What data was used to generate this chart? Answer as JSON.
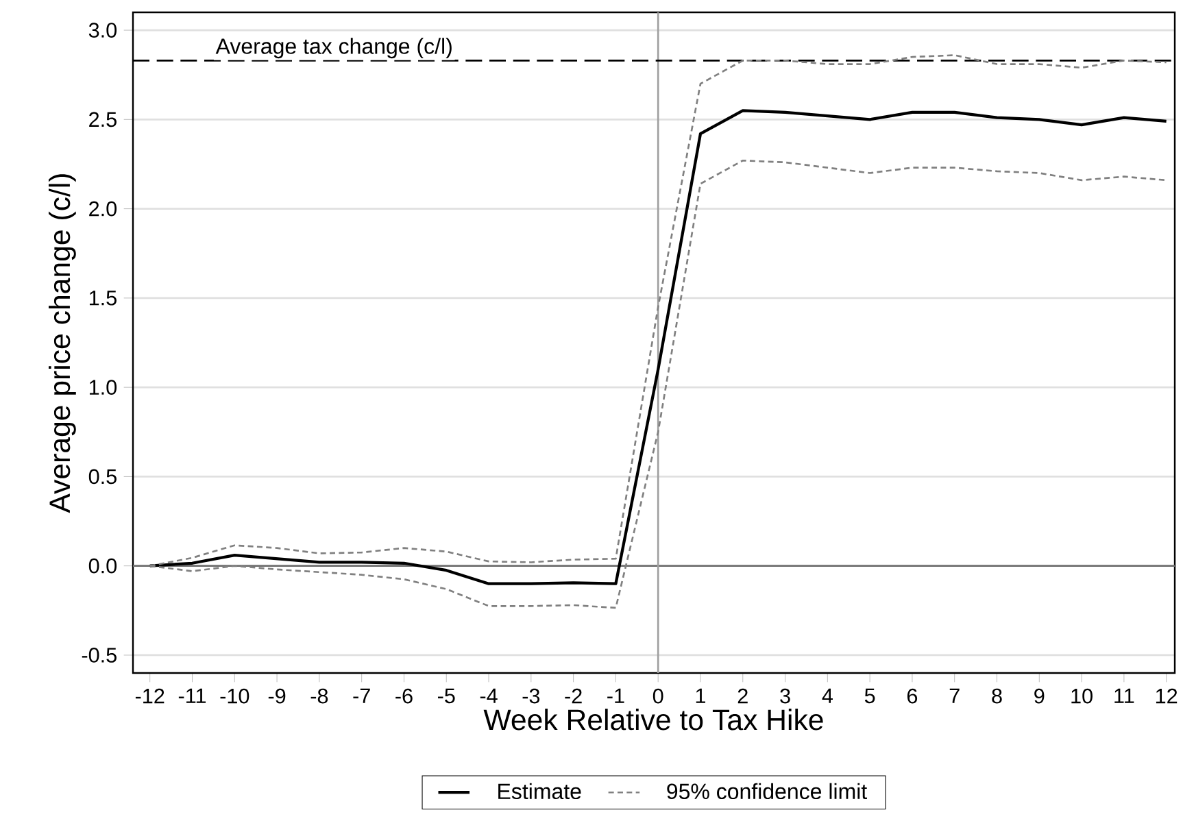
{
  "chart_data": {
    "type": "line",
    "xlabel": "Week Relative to Tax Hike",
    "ylabel": "Average price change (c/l)",
    "x": [
      -12,
      -11,
      -10,
      -9,
      -8,
      -7,
      -6,
      -5,
      -4,
      -3,
      -2,
      -1,
      0,
      1,
      2,
      3,
      4,
      5,
      6,
      7,
      8,
      9,
      10,
      11,
      12
    ],
    "series": [
      {
        "name": "Estimate",
        "color": "#000000",
        "line_style": "solid",
        "values": [
          0,
          0.015,
          0.06,
          0.04,
          0.02,
          0.02,
          0.015,
          -0.025,
          -0.1,
          -0.1,
          -0.095,
          -0.1,
          1.1,
          2.42,
          2.55,
          2.54,
          2.52,
          2.5,
          2.54,
          2.54,
          2.51,
          2.5,
          2.47,
          2.51,
          2.49
        ]
      },
      {
        "name": "95% confidence limit",
        "color": "#808080",
        "line_style": "dashed",
        "values": [
          0,
          0.045,
          0.115,
          0.1,
          0.07,
          0.075,
          0.1,
          0.08,
          0.025,
          0.02,
          0.035,
          0.04,
          1.45,
          2.7,
          2.83,
          2.83,
          2.81,
          2.81,
          2.85,
          2.86,
          2.81,
          2.81,
          2.79,
          2.83,
          2.82
        ]
      },
      {
        "color": "#808080",
        "line_style": "dashed",
        "values": [
          0,
          -0.03,
          0,
          -0.02,
          -0.035,
          -0.05,
          -0.075,
          -0.13,
          -0.225,
          -0.225,
          -0.22,
          -0.235,
          0.75,
          2.14,
          2.27,
          2.26,
          2.23,
          2.2,
          2.23,
          2.23,
          2.21,
          2.2,
          2.16,
          2.18,
          2.16
        ]
      }
    ],
    "xlim": [
      -12.4,
      12.2
    ],
    "ylim": [
      -0.6,
      3.1
    ],
    "xticks": [
      -12,
      -11,
      -10,
      -9,
      -8,
      -7,
      -6,
      -5,
      -4,
      -3,
      -2,
      -1,
      0,
      1,
      2,
      3,
      4,
      5,
      6,
      7,
      8,
      9,
      10,
      11,
      12
    ],
    "yticks": [
      {
        "value": -0.5,
        "label": "-0.5"
      },
      {
        "value": 0,
        "label": "0.0"
      },
      {
        "value": 0.5,
        "label": "0.5"
      },
      {
        "value": 1,
        "label": "1.0"
      },
      {
        "value": 1.5,
        "label": "1.5"
      },
      {
        "value": 2,
        "label": "2.0"
      },
      {
        "value": 2.5,
        "label": "2.5"
      },
      {
        "value": 3,
        "label": "3.0"
      }
    ],
    "ref_lines": [
      {
        "axis": "y",
        "value": 0,
        "color": "#707070",
        "line_style": "solid"
      },
      {
        "axis": "x",
        "value": 0,
        "color": "#a0a0a0",
        "line_style": "solid"
      },
      {
        "axis": "y",
        "value": 2.83,
        "color": "#000000",
        "line_style": "dashed",
        "label": "Average tax change (c/l)"
      }
    ],
    "grid": "y",
    "legend": "bottom",
    "marker": "none"
  }
}
